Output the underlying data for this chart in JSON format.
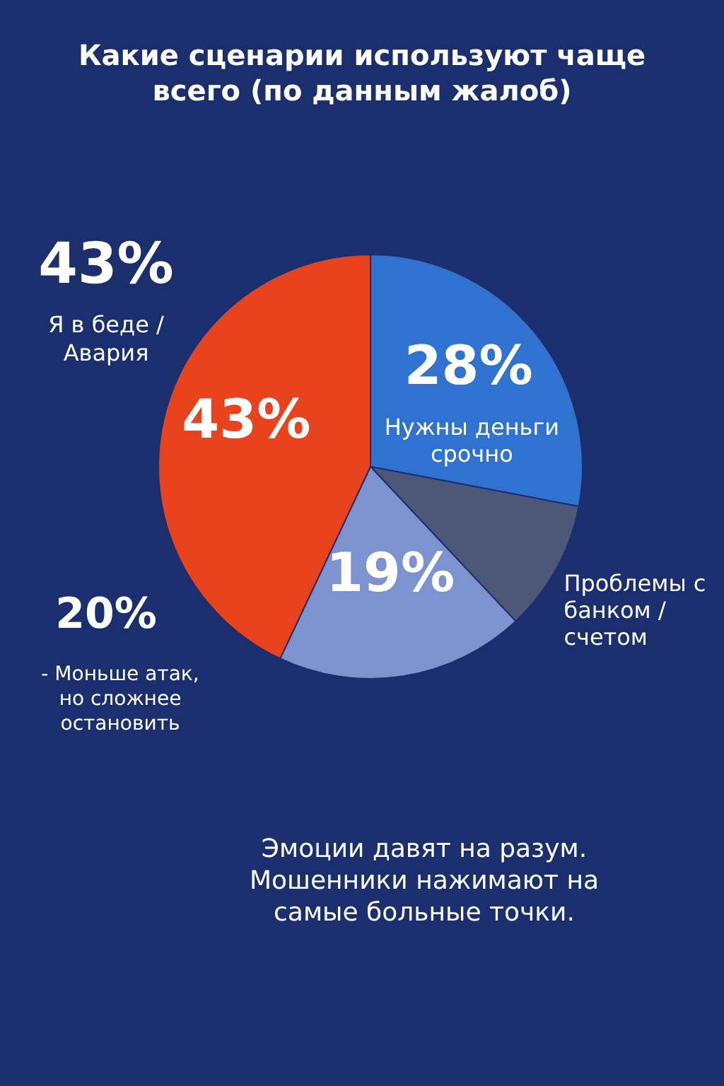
{
  "chart_data": {
    "type": "pie",
    "title": "Какие сценарии используют чаще всего (по данным жалоб)",
    "categories": [
      "Нужны деньги срочно",
      "Проблемы с банком / счетом",
      null,
      null
    ],
    "values": [
      28,
      10,
      19,
      43
    ],
    "value_labels": [
      "28%",
      null,
      "19%",
      "43%"
    ],
    "colors": [
      "#2f72d0",
      "#4d5878",
      "#7d93cf",
      "#e8431c"
    ],
    "annotations": [
      "43%",
      "Я в беде / Авария",
      "20%",
      "- Моньше атак, но сложнее остановить",
      "Эмоции давят на разум. Мошенники нажимают на самые больные точки."
    ]
  }
}
